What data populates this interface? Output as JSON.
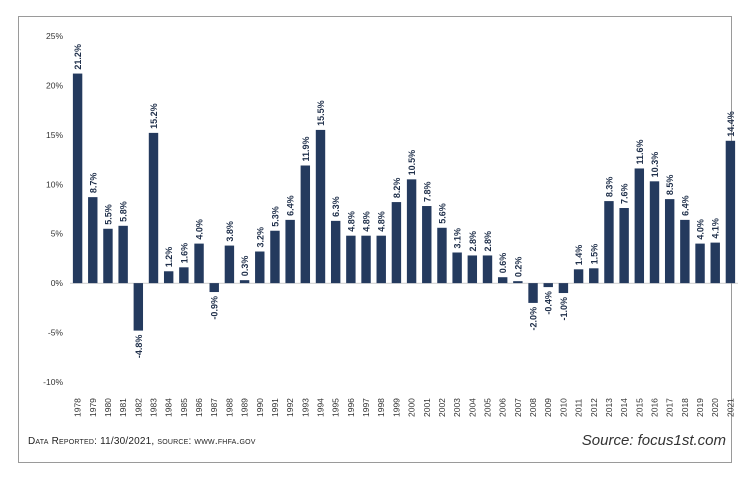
{
  "chart_data": {
    "type": "bar",
    "categories": [
      "1978",
      "1979",
      "1980",
      "1981",
      "1982",
      "1983",
      "1984",
      "1985",
      "1986",
      "1987",
      "1988",
      "1989",
      "1990",
      "1991",
      "1992",
      "1993",
      "1994",
      "1995",
      "1996",
      "1997",
      "1998",
      "1999",
      "2000",
      "2001",
      "2002",
      "2003",
      "2004",
      "2005",
      "2006",
      "2007",
      "2008",
      "2009",
      "2010",
      "2011",
      "2012",
      "2013",
      "2014",
      "2015",
      "2016",
      "2017",
      "2018",
      "2019",
      "2020",
      "2021"
    ],
    "values": [
      21.2,
      8.7,
      5.5,
      5.8,
      -4.8,
      15.2,
      1.2,
      1.6,
      4.0,
      -0.9,
      3.8,
      0.3,
      3.2,
      5.3,
      6.4,
      11.9,
      15.5,
      6.3,
      4.8,
      4.8,
      4.8,
      8.2,
      10.5,
      7.8,
      5.6,
      3.1,
      2.8,
      2.8,
      0.6,
      0.2,
      -2.0,
      -0.4,
      -1.0,
      1.4,
      1.5,
      8.3,
      7.6,
      11.6,
      10.3,
      8.5,
      6.4,
      4.0,
      4.1,
      14.4
    ],
    "value_labels": [
      "21.2%",
      "8.7%",
      "5.5%",
      "5.8%",
      "-4.8%",
      "15.2%",
      "1.2%",
      "1.6%",
      "4.0%",
      "-0.9%",
      "3.8%",
      "0.3%",
      "3.2%",
      "5.3%",
      "6.4%",
      "11.9%",
      "15.5%",
      "6.3%",
      "4.8%",
      "4.8%",
      "4.8%",
      "8.2%",
      "10.5%",
      "7.8%",
      "5.6%",
      "3.1%",
      "2.8%",
      "2.8%",
      "0.6%",
      "0.2%",
      "-2.0%",
      "-0.4%",
      "-1.0%",
      "1.4%",
      "1.5%",
      "8.3%",
      "7.6%",
      "11.6%",
      "10.3%",
      "8.5%",
      "6.4%",
      "4.0%",
      "4.1%",
      "14.4%"
    ],
    "yticks": [
      -10,
      -5,
      0,
      5,
      10,
      15,
      20,
      25
    ],
    "ytick_labels": [
      "-10%",
      "-5%",
      "0%",
      "5%",
      "10%",
      "15%",
      "20%",
      "25%"
    ],
    "ylim": [
      -10,
      25
    ],
    "grid": false,
    "bar_color": "#243a5e",
    "footer_left": "Data Reported: 11/30/2021, source: www.fhfa.gov",
    "footer_right": "Source: focus1st.com"
  }
}
